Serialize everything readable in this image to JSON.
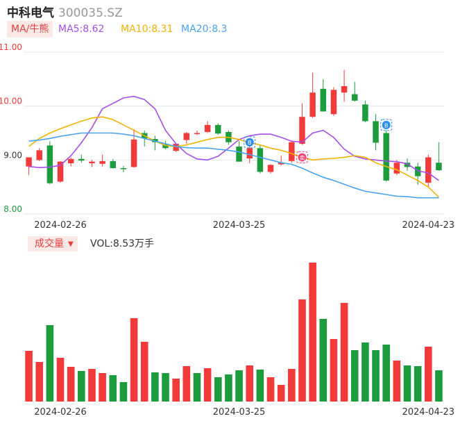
{
  "header": {
    "name": "中科电气",
    "code": "300035.SZ"
  },
  "ma_legend": {
    "button_label": "MA/牛熊",
    "ma5": "MA5:8.62",
    "ma10": "MA10:8.31",
    "ma20": "MA20:8.3"
  },
  "volume_legend": {
    "button_label": "成交量",
    "value_text": "VOL:8.53万手"
  },
  "colors": {
    "up": "#f23a3a",
    "down": "#1d9c3e",
    "ma5": "#a64ee8",
    "ma10": "#f2b200",
    "ma20": "#4aa3ee",
    "grid": "#e8e8e8"
  },
  "chart_data": [
    {
      "type": "candlestick",
      "title": "",
      "y_ticks": [
        "11.00",
        "10.00",
        "9.00",
        "8.00"
      ],
      "ylim": [
        8.0,
        11.0
      ],
      "x_tick_labels": [
        "2024-02-26",
        "2024-03-25",
        "2024-04-23"
      ],
      "x_tick_index": [
        3,
        20,
        38
      ],
      "candles": [
        {
          "o": 8.88,
          "h": 9.05,
          "l": 8.72,
          "c": 9.05
        },
        {
          "o": 9.0,
          "h": 9.22,
          "l": 8.98,
          "c": 9.18
        },
        {
          "o": 9.27,
          "h": 9.35,
          "l": 8.55,
          "c": 8.57
        },
        {
          "o": 8.6,
          "h": 8.98,
          "l": 8.58,
          "c": 8.97
        },
        {
          "o": 8.94,
          "h": 9.05,
          "l": 8.88,
          "c": 9.02
        },
        {
          "o": 9.02,
          "h": 9.1,
          "l": 8.95,
          "c": 8.99
        },
        {
          "o": 8.94,
          "h": 9.0,
          "l": 8.87,
          "c": 8.97
        },
        {
          "o": 8.93,
          "h": 9.1,
          "l": 8.88,
          "c": 8.98
        },
        {
          "o": 8.98,
          "h": 9.02,
          "l": 8.84,
          "c": 8.85
        },
        {
          "o": 8.85,
          "h": 8.89,
          "l": 8.77,
          "c": 8.83
        },
        {
          "o": 8.87,
          "h": 9.57,
          "l": 8.86,
          "c": 9.38
        },
        {
          "o": 9.5,
          "h": 9.55,
          "l": 9.25,
          "c": 9.4
        },
        {
          "o": 9.39,
          "h": 9.45,
          "l": 9.18,
          "c": 9.33
        },
        {
          "o": 9.29,
          "h": 9.35,
          "l": 9.2,
          "c": 9.22
        },
        {
          "o": 9.17,
          "h": 9.3,
          "l": 9.15,
          "c": 9.3
        },
        {
          "o": 9.37,
          "h": 9.52,
          "l": 9.3,
          "c": 9.5
        },
        {
          "o": 9.5,
          "h": 9.55,
          "l": 9.46,
          "c": 9.5
        },
        {
          "o": 9.52,
          "h": 9.72,
          "l": 9.5,
          "c": 9.65
        },
        {
          "o": 9.65,
          "h": 9.68,
          "l": 9.47,
          "c": 9.49
        },
        {
          "o": 9.52,
          "h": 9.55,
          "l": 9.28,
          "c": 9.33
        },
        {
          "o": 9.25,
          "h": 9.35,
          "l": 8.97,
          "c": 8.97
        },
        {
          "o": 9.03,
          "h": 9.3,
          "l": 8.94,
          "c": 9.22
        },
        {
          "o": 9.22,
          "h": 9.28,
          "l": 8.75,
          "c": 8.78
        },
        {
          "o": 8.78,
          "h": 8.92,
          "l": 8.75,
          "c": 8.91
        },
        {
          "o": 8.92,
          "h": 9.08,
          "l": 8.9,
          "c": 8.95
        },
        {
          "o": 8.98,
          "h": 9.36,
          "l": 8.95,
          "c": 9.33
        },
        {
          "o": 9.3,
          "h": 10.05,
          "l": 9.28,
          "c": 9.8
        },
        {
          "o": 9.8,
          "h": 10.62,
          "l": 9.78,
          "c": 10.25
        },
        {
          "o": 10.32,
          "h": 10.5,
          "l": 9.9,
          "c": 9.9
        },
        {
          "o": 9.85,
          "h": 10.35,
          "l": 9.82,
          "c": 10.3
        },
        {
          "o": 10.25,
          "h": 10.67,
          "l": 10.08,
          "c": 10.37
        },
        {
          "o": 10.22,
          "h": 10.45,
          "l": 10.08,
          "c": 10.1
        },
        {
          "o": 10.03,
          "h": 10.1,
          "l": 9.7,
          "c": 9.72
        },
        {
          "o": 9.72,
          "h": 9.85,
          "l": 9.18,
          "c": 9.32
        },
        {
          "o": 9.5,
          "h": 9.55,
          "l": 8.6,
          "c": 8.62
        },
        {
          "o": 8.75,
          "h": 9.0,
          "l": 8.72,
          "c": 8.95
        },
        {
          "o": 8.95,
          "h": 9.03,
          "l": 8.8,
          "c": 8.87
        },
        {
          "o": 8.88,
          "h": 8.95,
          "l": 8.54,
          "c": 8.7
        },
        {
          "o": 8.58,
          "h": 9.1,
          "l": 8.5,
          "c": 9.05
        },
        {
          "o": 8.95,
          "h": 9.33,
          "l": 8.8,
          "c": 8.81
        }
      ],
      "series": [
        {
          "name": "MA5",
          "values": [
            8.88,
            8.86,
            8.87,
            8.9,
            9.08,
            9.32,
            9.6,
            9.95,
            10.05,
            10.15,
            10.18,
            10.12,
            9.95,
            9.55,
            9.3,
            9.12,
            9.02,
            9.0,
            9.07,
            9.22,
            9.38,
            9.45,
            9.48,
            9.48,
            9.42,
            9.35,
            9.33,
            9.5,
            9.55,
            9.42,
            9.2,
            9.07,
            9.02,
            9.0,
            8.98,
            8.97,
            8.93,
            8.8,
            8.76,
            8.62
          ]
        },
        {
          "name": "MA10",
          "values": [
            9.25,
            9.4,
            9.5,
            9.58,
            9.65,
            9.72,
            9.78,
            9.8,
            9.75,
            9.65,
            9.55,
            9.45,
            9.35,
            9.27,
            9.25,
            9.28,
            9.33,
            9.38,
            9.42,
            9.42,
            9.38,
            9.32,
            9.28,
            9.22,
            9.18,
            9.12,
            9.05,
            9.0,
            9.02,
            9.03,
            9.05,
            9.08,
            9.05,
            8.95,
            8.88,
            8.82,
            8.72,
            8.62,
            8.5,
            8.31
          ]
        },
        {
          "name": "MA20",
          "values": [
            9.35,
            9.37,
            9.4,
            9.44,
            9.47,
            9.5,
            9.5,
            9.5,
            9.5,
            9.48,
            9.45,
            9.4,
            9.35,
            9.3,
            9.25,
            9.23,
            9.22,
            9.22,
            9.2,
            9.18,
            9.15,
            9.1,
            9.05,
            9.0,
            8.95,
            8.92,
            8.85,
            8.76,
            8.68,
            8.62,
            8.55,
            8.48,
            8.42,
            8.39,
            8.36,
            8.33,
            8.32,
            8.3,
            8.3,
            8.3
          ]
        }
      ],
      "markers": [
        {
          "index": 21,
          "kind": "blue",
          "glyph": "B",
          "value": 9.33
        },
        {
          "index": 26,
          "kind": "red",
          "glyph": "卖",
          "value": 9.05
        },
        {
          "index": 34,
          "kind": "blue",
          "glyph": "B",
          "value": 9.65
        }
      ]
    },
    {
      "type": "bar",
      "title": "",
      "x_tick_labels": [
        "2024-02-26",
        "2024-03-25",
        "2024-04-23"
      ],
      "x_tick_index": [
        3,
        20,
        38
      ],
      "ylim": [
        0,
        200
      ],
      "values": [
        73,
        57,
        110,
        63,
        50,
        44,
        47,
        41,
        38,
        28,
        120,
        86,
        42,
        41,
        33,
        51,
        41,
        48,
        35,
        39,
        45,
        52,
        46,
        35,
        24,
        47,
        147,
        200,
        119,
        90,
        142,
        74,
        85,
        74,
        82,
        59,
        52,
        51,
        79,
        45
      ],
      "directions": [
        "up",
        "up",
        "down",
        "up",
        "up",
        "down",
        "up",
        "up",
        "down",
        "down",
        "up",
        "up",
        "down",
        "down",
        "up",
        "up",
        "down",
        "up",
        "down",
        "down",
        "down",
        "up",
        "down",
        "up",
        "up",
        "up",
        "up",
        "up",
        "down",
        "up",
        "up",
        "down",
        "down",
        "down",
        "down",
        "up",
        "down",
        "down",
        "up",
        "down"
      ]
    }
  ]
}
